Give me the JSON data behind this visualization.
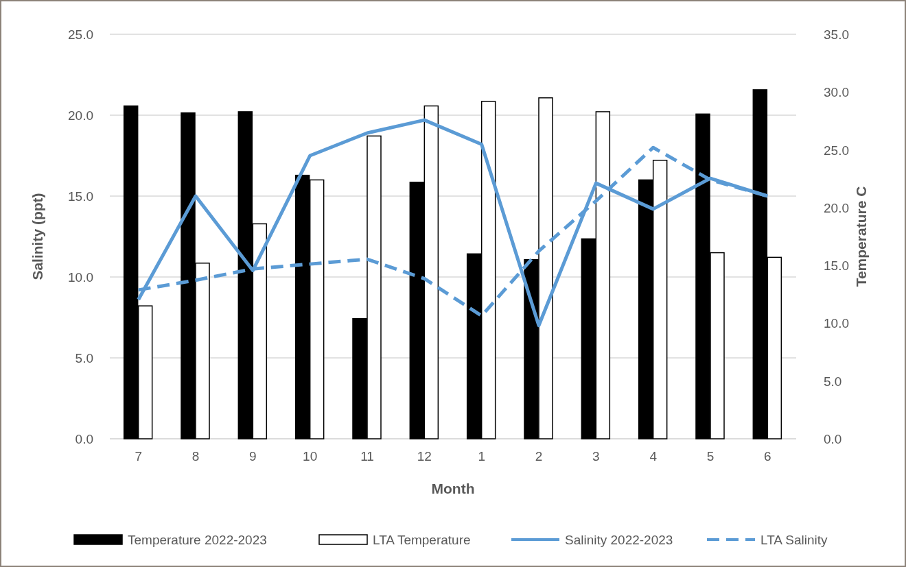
{
  "chart_data": {
    "type": "bar",
    "xlabel": "Month",
    "ylabel": "Salinity (ppt)",
    "y2label": "Temperature C",
    "categories": [
      "7",
      "8",
      "9",
      "10",
      "11",
      "12",
      "1",
      "2",
      "3",
      "4",
      "5",
      "6"
    ],
    "series": [
      {
        "name": "Temperature 2022-2023",
        "axis": "y2",
        "color": "#000000",
        "values": [
          28.8,
          28.2,
          28.3,
          22.8,
          10.4,
          22.2,
          16.0,
          15.5,
          17.3,
          22.4,
          28.1,
          30.2
        ]
      },
      {
        "name": "LTA Temperature",
        "axis": "y2",
        "color": "#ffffff",
        "values": [
          11.5,
          15.2,
          18.6,
          22.4,
          26.2,
          28.8,
          29.2,
          29.5,
          28.3,
          24.1,
          16.1,
          15.7
        ]
      },
      {
        "name": "Salinity 2022-2023",
        "type": "line",
        "axis": "y",
        "color": "#5b9bd5",
        "line_style": "solid",
        "values": [
          8.6,
          15.0,
          10.4,
          17.5,
          18.9,
          19.7,
          18.2,
          7.0,
          15.8,
          14.2,
          16.1,
          15.0
        ]
      },
      {
        "name": "LTA Salinity",
        "type": "line",
        "axis": "y",
        "color": "#5b9bd5",
        "line_style": "dashed",
        "values": [
          9.2,
          9.8,
          10.5,
          10.8,
          11.1,
          9.9,
          7.6,
          11.6,
          14.7,
          18.0,
          16.0,
          15.0
        ]
      }
    ],
    "ylim": [
      0,
      25
    ],
    "yticks": [
      {
        "value": 0,
        "label": "0.0"
      },
      {
        "value": 5,
        "label": "5.0"
      },
      {
        "value": 10,
        "label": "10.0"
      },
      {
        "value": 15,
        "label": "15.0"
      },
      {
        "value": 20,
        "label": "20.0"
      },
      {
        "value": 25,
        "label": "25.0"
      }
    ],
    "y2lim": [
      0,
      35
    ],
    "y2ticks": [
      {
        "value": 0,
        "label": "0.0"
      },
      {
        "value": 5,
        "label": "5.0"
      },
      {
        "value": 10,
        "label": "10.0"
      },
      {
        "value": 15,
        "label": "15.0"
      },
      {
        "value": 20,
        "label": "20.0"
      },
      {
        "value": 25,
        "label": "25.0"
      },
      {
        "value": 30,
        "label": "30.0"
      },
      {
        "value": 35,
        "label": "35.0"
      }
    ],
    "grid": "y",
    "legend": "bottom"
  }
}
